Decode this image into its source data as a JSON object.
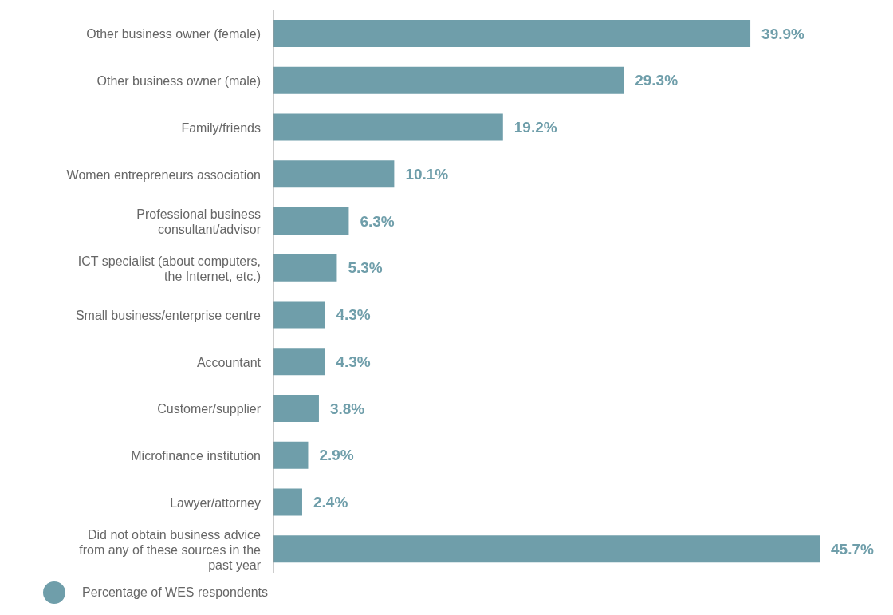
{
  "chart_data": {
    "type": "bar",
    "orientation": "horizontal",
    "categories": [
      "Other business owner (female)",
      "Other business owner (male)",
      "Family/friends",
      "Women entrepreneurs association",
      "Professional business consultant/advisor",
      "ICT specialist (about computers, the Internet, etc.)",
      "Small business/enterprise centre",
      "Accountant",
      "Customer/supplier",
      "Microfinance institution",
      "Lawyer/attorney",
      "Did not obtain business advice from any of these sources in the past year"
    ],
    "series": [
      {
        "name": "Percentage of WES respondents",
        "color": "#6f9eaa",
        "values": [
          39.9,
          29.3,
          19.2,
          10.1,
          6.3,
          5.3,
          4.3,
          4.3,
          3.8,
          2.9,
          2.4,
          45.7
        ],
        "value_labels": [
          "39.9%",
          "29.3%",
          "19.2%",
          "10.1%",
          "6.3%",
          "5.3%",
          "4.3%",
          "4.3%",
          "3.8%",
          "2.9%",
          "2.4%",
          "45.7%"
        ]
      }
    ],
    "legend": "bottom left",
    "grid": false
  }
}
